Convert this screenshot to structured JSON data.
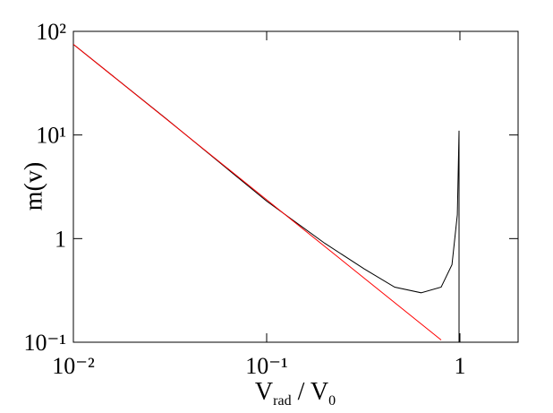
{
  "chart_data": {
    "type": "line",
    "xlabel": [
      "V",
      "rad",
      " / V",
      "0"
    ],
    "ylabel": "m(v)",
    "xscale": "log",
    "yscale": "log",
    "xlim": [
      0.01,
      2
    ],
    "ylim": [
      0.1,
      100
    ],
    "xticks": [
      {
        "value": 0.01,
        "label": "10⁻²"
      },
      {
        "value": 0.1,
        "label": "10⁻¹"
      },
      1
    ],
    "yticks": [
      {
        "value": 0.1,
        "label": "10⁻¹"
      },
      1,
      {
        "value": 10,
        "label": "10¹"
      },
      {
        "value": 100,
        "label": "10²"
      }
    ],
    "series": [
      {
        "color": "#000000",
        "x": [
          0.01,
          0.03,
          0.1,
          0.2,
          0.32,
          0.46,
          0.63,
          0.8,
          0.91,
          0.97,
          0.99,
          0.99
        ],
        "values": [
          75,
          14.5,
          2.3,
          0.9,
          0.51,
          0.34,
          0.3,
          0.34,
          0.56,
          1.7,
          11,
          0.1
        ]
      },
      {
        "color": "#ff0000",
        "x": [
          0.01,
          0.1,
          0.8
        ],
        "values": [
          75,
          2.37,
          0.105
        ]
      }
    ]
  }
}
